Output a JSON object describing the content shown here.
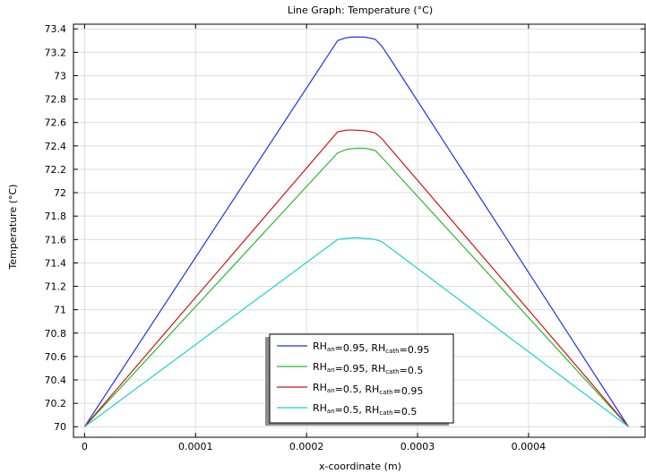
{
  "chart_data": {
    "type": "line",
    "title": "Line Graph: Temperature (°C)",
    "xlabel": "x-coordinate (m)",
    "ylabel": "Temperature (°C)",
    "xlim": [
      -1e-05,
      0.000505
    ],
    "ylim": [
      69.91,
      73.44
    ],
    "xticks": [
      0,
      0.0001,
      0.0002,
      0.0003,
      0.0004
    ],
    "xtick_labels": [
      "0",
      "0.0001",
      "0.0002",
      "0.0003",
      "0.0004"
    ],
    "yticks": [
      70,
      70.2,
      70.4,
      70.6,
      70.8,
      71,
      71.2,
      71.4,
      71.6,
      71.8,
      72,
      72.2,
      72.4,
      72.6,
      72.8,
      73,
      73.2,
      73.4
    ],
    "ytick_labels": [
      "70",
      "70.2",
      "70.4",
      "70.6",
      "70.8",
      "71",
      "71.2",
      "71.4",
      "71.6",
      "71.8",
      "72",
      "72.2",
      "72.4",
      "72.6",
      "72.8",
      "73",
      "73.2",
      "73.4"
    ],
    "grid": true,
    "legend_position": "bottom-center",
    "series": [
      {
        "legend": {
          "a": "RH",
          "b": "an",
          "c": "=0.95, RH",
          "d": "cath",
          "e": "=0.95"
        },
        "color": "#1f33e6",
        "x": [
          0,
          0.000228,
          0.000234,
          0.00024,
          0.000246,
          0.000252,
          0.000258,
          0.000262,
          0.000268,
          0.000275,
          0.00049
        ],
        "y": [
          70,
          73.3,
          73.32,
          73.33,
          73.33,
          73.33,
          73.32,
          73.31,
          73.25,
          73.15,
          70
        ]
      },
      {
        "legend": {
          "a": "RH",
          "b": "an",
          "c": "=0.95, RH",
          "d": "cath",
          "e": "=0.5"
        },
        "color": "#2db82d",
        "x": [
          0,
          0.000228,
          0.000236,
          0.000244,
          0.000252,
          0.000258,
          0.000262,
          0.000268,
          0.00049
        ],
        "y": [
          70,
          72.34,
          72.37,
          72.38,
          72.38,
          72.37,
          72.36,
          72.3,
          70
        ]
      },
      {
        "legend": {
          "a": "RH",
          "b": "an",
          "c": "=0.5, RH",
          "d": "cath",
          "e": "=0.95"
        },
        "color": "#cc1414",
        "x": [
          0,
          0.000228,
          0.000236,
          0.000244,
          0.000252,
          0.000258,
          0.000262,
          0.000268,
          0.00049
        ],
        "y": [
          70,
          72.52,
          72.535,
          72.535,
          72.53,
          72.52,
          72.51,
          72.46,
          70
        ]
      },
      {
        "legend": {
          "a": "RH",
          "b": "an",
          "c": "=0.5, RH",
          "d": "cath",
          "e": "=0.5"
        },
        "color": "#1ecfcf",
        "x": [
          0,
          0.000228,
          0.000236,
          0.000244,
          0.000252,
          0.000258,
          0.000262,
          0.000268,
          0.00049
        ],
        "y": [
          70,
          71.6,
          71.61,
          71.615,
          71.61,
          71.605,
          71.6,
          71.58,
          70
        ]
      }
    ]
  }
}
